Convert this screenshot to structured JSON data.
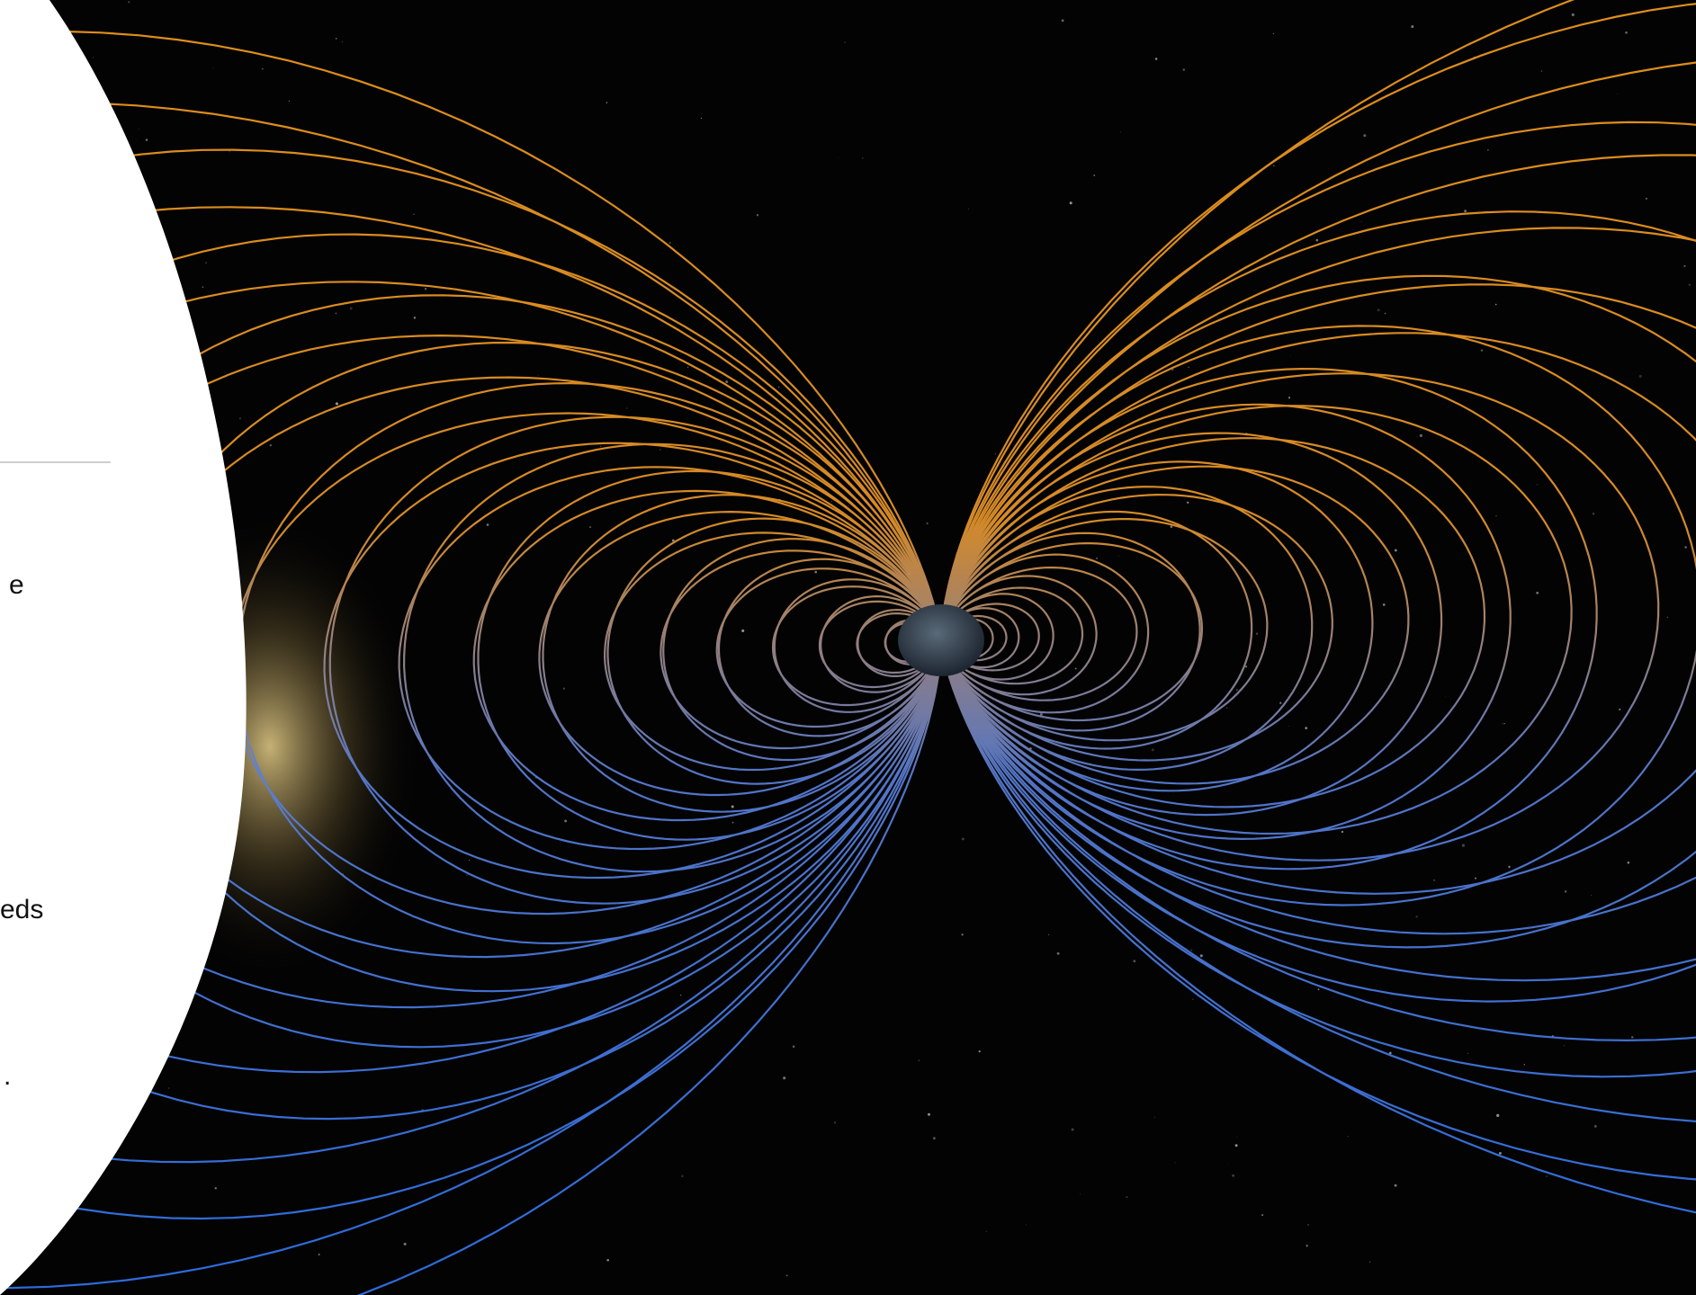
{
  "slide": {
    "text_fragments": [
      "e",
      "eds",
      "."
    ]
  }
}
